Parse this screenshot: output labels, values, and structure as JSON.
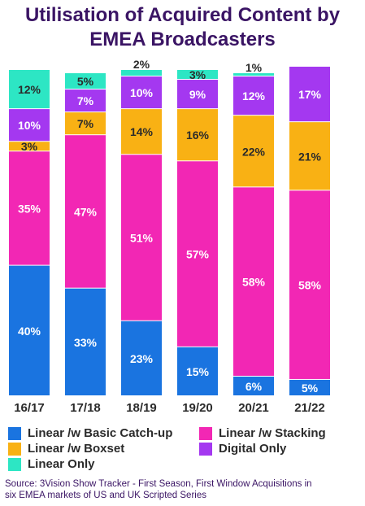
{
  "chart_data": {
    "type": "bar",
    "stacked": true,
    "title_line1": "Utilisation of Acquired Content by",
    "title_line2": "EMEA Broadcasters",
    "categories": [
      "16/17",
      "17/18",
      "18/19",
      "19/20",
      "20/21",
      "21/22"
    ],
    "series": [
      {
        "name": "Linear /w Basic Catch-up",
        "color": "#1a74e0",
        "values": [
          40,
          33,
          23,
          15,
          6,
          5
        ]
      },
      {
        "name": "Linear /w Stacking",
        "color": "#f227b4",
        "values": [
          35,
          47,
          51,
          57,
          58,
          58
        ]
      },
      {
        "name": "Linear /w Boxset",
        "color": "#f9b114",
        "values": [
          3,
          7,
          14,
          16,
          22,
          21
        ]
      },
      {
        "name": "Digital Only",
        "color": "#a438f0",
        "values": [
          10,
          7,
          10,
          9,
          12,
          17
        ]
      },
      {
        "name": "Linear Only",
        "color": "#2de6c4",
        "values": [
          12,
          5,
          2,
          3,
          1,
          0
        ]
      }
    ],
    "value_suffix": "%",
    "ylim": [
      0,
      100
    ],
    "grid": false,
    "legend_position": "bottom"
  },
  "source": {
    "line1": "Source: 3Vision Show Tracker - First Season, First Window Acquisitions in",
    "line2": "six EMEA markets of US and UK Scripted Series"
  }
}
